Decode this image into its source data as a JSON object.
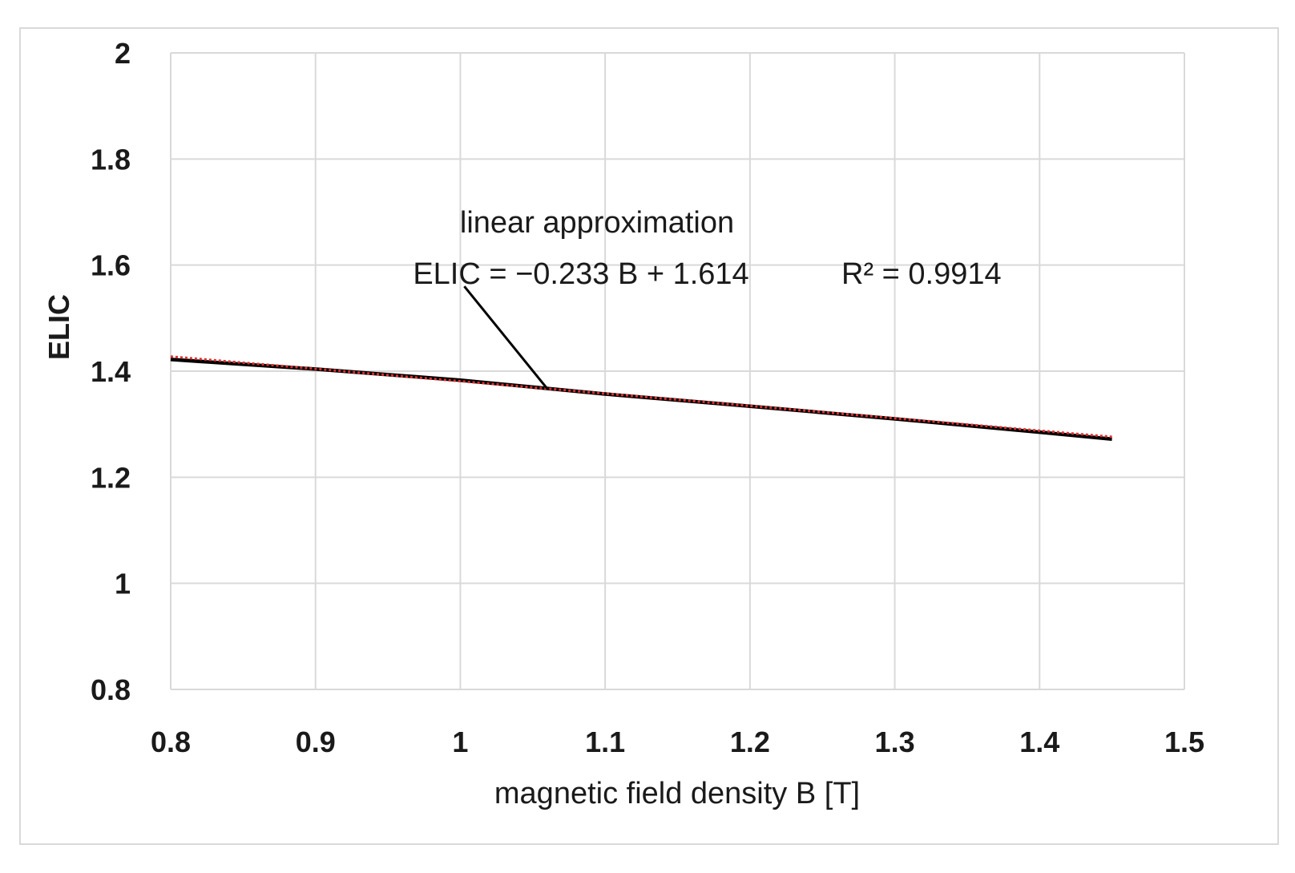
{
  "chart_data": {
    "type": "line",
    "title": "",
    "xlabel": "magnetic field density B [T]",
    "ylabel": "ELIC",
    "xlim": [
      0.8,
      1.5
    ],
    "ylim": [
      0.8,
      2
    ],
    "x_ticks": [
      0.8,
      0.9,
      1,
      1.1,
      1.2,
      1.3,
      1.4,
      1.5
    ],
    "x_tick_labels": [
      "0.8",
      "0.9",
      "1",
      "1.1",
      "1.2",
      "1.3",
      "1.4",
      "1.5"
    ],
    "y_ticks": [
      0.8,
      1,
      1.2,
      1.4,
      1.6,
      1.8,
      2
    ],
    "y_tick_labels": [
      "0.8",
      "1",
      "1.2",
      "1.4",
      "1.6",
      "1.8",
      "2"
    ],
    "grid": true,
    "series": [
      {
        "name": "ELIC",
        "color": "#000000",
        "style": "solid",
        "x": [
          0.8,
          0.9,
          1.0,
          1.1,
          1.2,
          1.3,
          1.4,
          1.45
        ],
        "y": [
          1.422,
          1.404,
          1.383,
          1.357,
          1.334,
          1.31,
          1.285,
          1.272
        ]
      },
      {
        "name": "linear approximation",
        "color": "#e03030",
        "style": "dotted",
        "x": [
          0.8,
          1.45
        ],
        "y": [
          1.4276,
          1.2762
        ]
      }
    ],
    "annotations": {
      "line1": "linear approximation",
      "equation": "ELIC = −0.233 B + 1.614",
      "r_squared": "R² = 0.9914",
      "pointer_target": {
        "x": 1.06,
        "y": 1.367
      },
      "pointer_source": {
        "x": 1.0,
        "y": 1.56
      }
    }
  }
}
